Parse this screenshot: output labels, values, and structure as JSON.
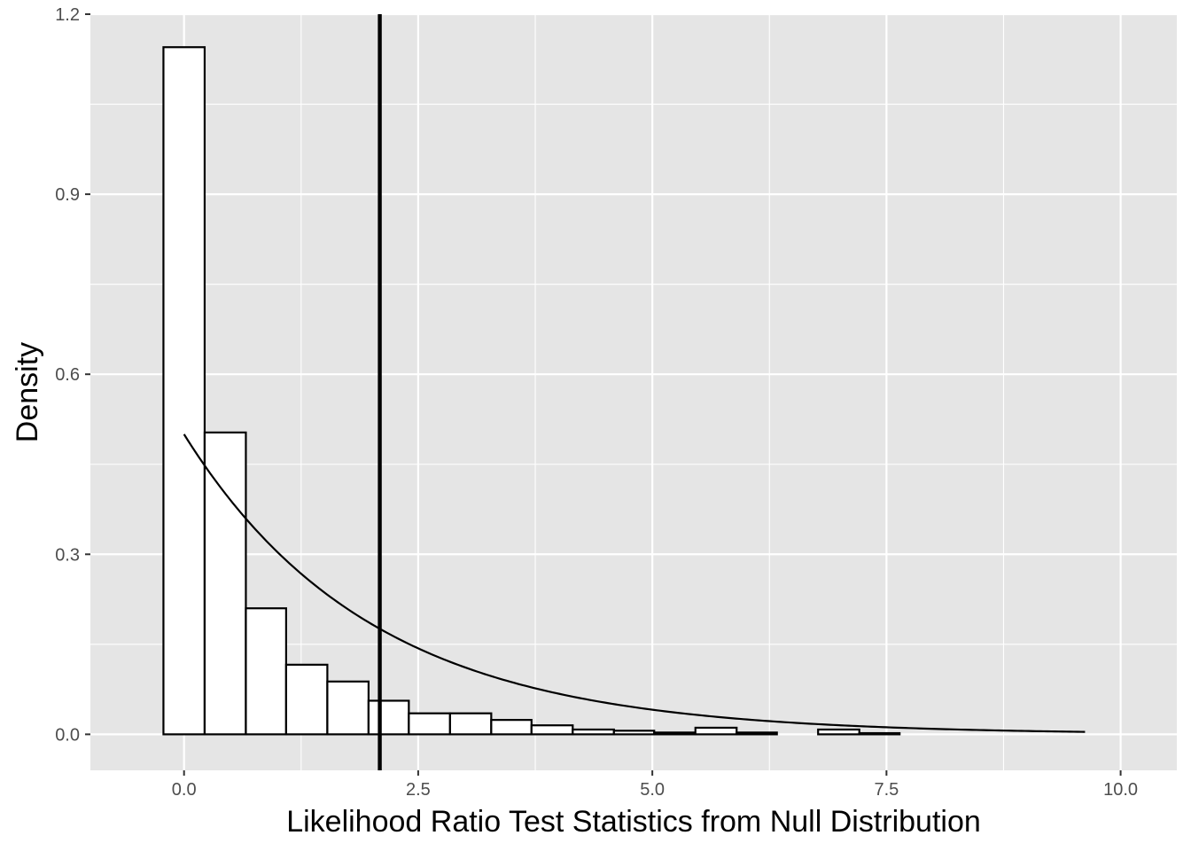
{
  "chart_data": {
    "type": "bar",
    "title": "",
    "xlabel": "Likelihood Ratio Test Statistics from Null Distribution",
    "ylabel": "Density",
    "xlim": [
      -1.0,
      10.6
    ],
    "ylim": [
      -0.06,
      1.2
    ],
    "x_ticks": [
      {
        "value": 0.0,
        "label": "0.0"
      },
      {
        "value": 2.5,
        "label": "2.5"
      },
      {
        "value": 5.0,
        "label": "5.0"
      },
      {
        "value": 7.5,
        "label": "7.5"
      },
      {
        "value": 10.0,
        "label": "10.0"
      }
    ],
    "y_ticks": [
      {
        "value": 0.0,
        "label": "0.0"
      },
      {
        "value": 0.3,
        "label": "0.3"
      },
      {
        "value": 0.6,
        "label": "0.6"
      },
      {
        "value": 0.9,
        "label": "0.9"
      },
      {
        "value": 1.2,
        "label": "1.2"
      }
    ],
    "grid": true,
    "legend": "none",
    "colors": {
      "panel_background": "#e5e5e5",
      "grid": "#ffffff",
      "bar_fill": "#ffffff",
      "bar_outline": "#000000",
      "curve": "#000000",
      "reference_line": "#000000"
    },
    "histogram": {
      "bin_width": 0.437,
      "bins": [
        {
          "x0": -0.22,
          "x1": 0.22,
          "density": 1.145
        },
        {
          "x0": 0.22,
          "x1": 0.66,
          "density": 0.503
        },
        {
          "x0": 0.66,
          "x1": 1.09,
          "density": 0.21
        },
        {
          "x0": 1.09,
          "x1": 1.53,
          "density": 0.116
        },
        {
          "x0": 1.53,
          "x1": 1.97,
          "density": 0.088
        },
        {
          "x0": 1.97,
          "x1": 2.4,
          "density": 0.056
        },
        {
          "x0": 2.4,
          "x1": 2.84,
          "density": 0.035
        },
        {
          "x0": 2.84,
          "x1": 3.28,
          "density": 0.035
        },
        {
          "x0": 3.28,
          "x1": 3.71,
          "density": 0.024
        },
        {
          "x0": 3.71,
          "x1": 4.15,
          "density": 0.015
        },
        {
          "x0": 4.15,
          "x1": 4.59,
          "density": 0.008
        },
        {
          "x0": 4.59,
          "x1": 5.02,
          "density": 0.006
        },
        {
          "x0": 5.02,
          "x1": 5.46,
          "density": 0.003
        },
        {
          "x0": 5.46,
          "x1": 5.9,
          "density": 0.011
        },
        {
          "x0": 5.9,
          "x1": 6.33,
          "density": 0.003
        },
        {
          "x0": 6.33,
          "x1": 6.77,
          "density": 0.0
        },
        {
          "x0": 6.77,
          "x1": 7.21,
          "density": 0.008
        },
        {
          "x0": 7.21,
          "x1": 7.64,
          "density": 0.002
        },
        {
          "x0": 7.64,
          "x1": 8.08,
          "density": 0.0
        },
        {
          "x0": 8.08,
          "x1": 8.52,
          "density": 0.0
        },
        {
          "x0": 8.52,
          "x1": 8.95,
          "density": 0.0
        },
        {
          "x0": 8.95,
          "x1": 9.39,
          "density": 0.0
        },
        {
          "x0": 9.39,
          "x1": 9.83,
          "density": 0.0
        }
      ]
    },
    "curve": {
      "name": "",
      "x_range": [
        0.0,
        9.62
      ],
      "formula": "0.5 * exp(-x / 2)"
    },
    "reference_line": {
      "x": 2.09
    }
  }
}
